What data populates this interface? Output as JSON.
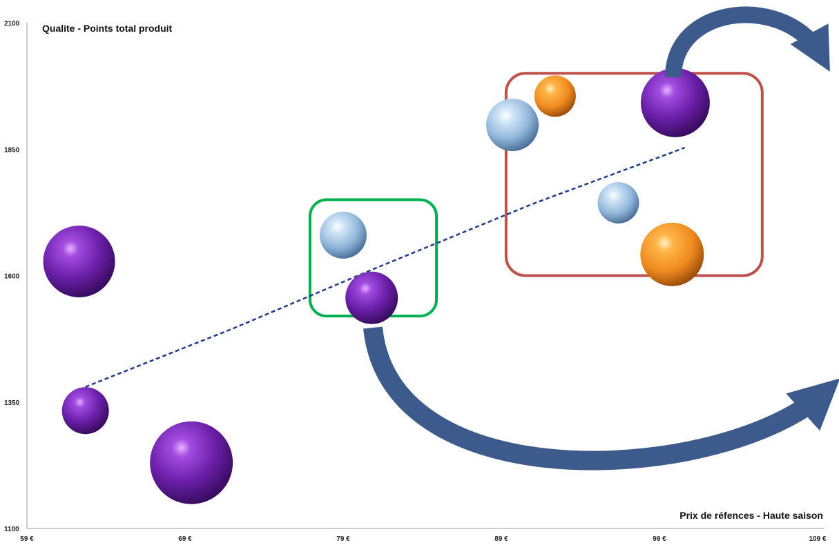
{
  "chart_data": {
    "type": "scatter",
    "subtype": "bubble",
    "title": "",
    "ylabel": "Qualite - Points total produit",
    "xlabel": "Prix de réfences - Haute saison",
    "xlim": [
      59,
      109
    ],
    "ylim": [
      1100,
      2100
    ],
    "x_ticks": [
      "59 €",
      "69 €",
      "79 €",
      "89 €",
      "99 €",
      "109 €"
    ],
    "y_ticks": [
      "1100",
      "1350",
      "1600",
      "1850",
      "2100"
    ],
    "grid": false,
    "legend": "none",
    "series_colors": {
      "purple": "#6a1fa8",
      "lightblue": "#9cc3e6",
      "orange": "#ef8a1f"
    },
    "points": [
      {
        "x": 62.3,
        "y": 1628,
        "size": 52,
        "color": "purple"
      },
      {
        "x": 62.7,
        "y": 1333,
        "size": 34,
        "color": "purple"
      },
      {
        "x": 69.4,
        "y": 1230,
        "size": 60,
        "color": "purple"
      },
      {
        "x": 79.0,
        "y": 1680,
        "size": 34,
        "color": "lightblue"
      },
      {
        "x": 80.8,
        "y": 1556,
        "size": 38,
        "color": "purple"
      },
      {
        "x": 89.7,
        "y": 1898,
        "size": 38,
        "color": "lightblue"
      },
      {
        "x": 92.4,
        "y": 1955,
        "size": 30,
        "color": "orange"
      },
      {
        "x": 96.4,
        "y": 1744,
        "size": 30,
        "color": "lightblue"
      },
      {
        "x": 99.8,
        "y": 1642,
        "size": 46,
        "color": "orange"
      },
      {
        "x": 100.0,
        "y": 1942,
        "size": 50,
        "color": "purple"
      }
    ],
    "trendline": {
      "type": "logarithmic",
      "style": "dashed",
      "color": "#1f3a8a",
      "x": [
        62.7,
        72.0,
        81.0,
        91.0,
        100.6
      ],
      "y": [
        1380,
        1495,
        1614,
        1742,
        1853
      ]
    },
    "annotations": [
      {
        "shape": "rounded-rect",
        "color": "#00b050",
        "x_range": [
          76.9,
          84.9
        ],
        "y_range": [
          1520,
          1750
        ]
      },
      {
        "shape": "rounded-rect",
        "color": "#c0504d",
        "x_range": [
          89.3,
          105.5
        ],
        "y_range": [
          1600,
          2000
        ]
      },
      {
        "shape": "curved-arrow",
        "color": "#3c5a8c",
        "direction": "up-right"
      },
      {
        "shape": "curved-arrow",
        "color": "#3c5a8c",
        "direction": "down-right"
      }
    ]
  }
}
